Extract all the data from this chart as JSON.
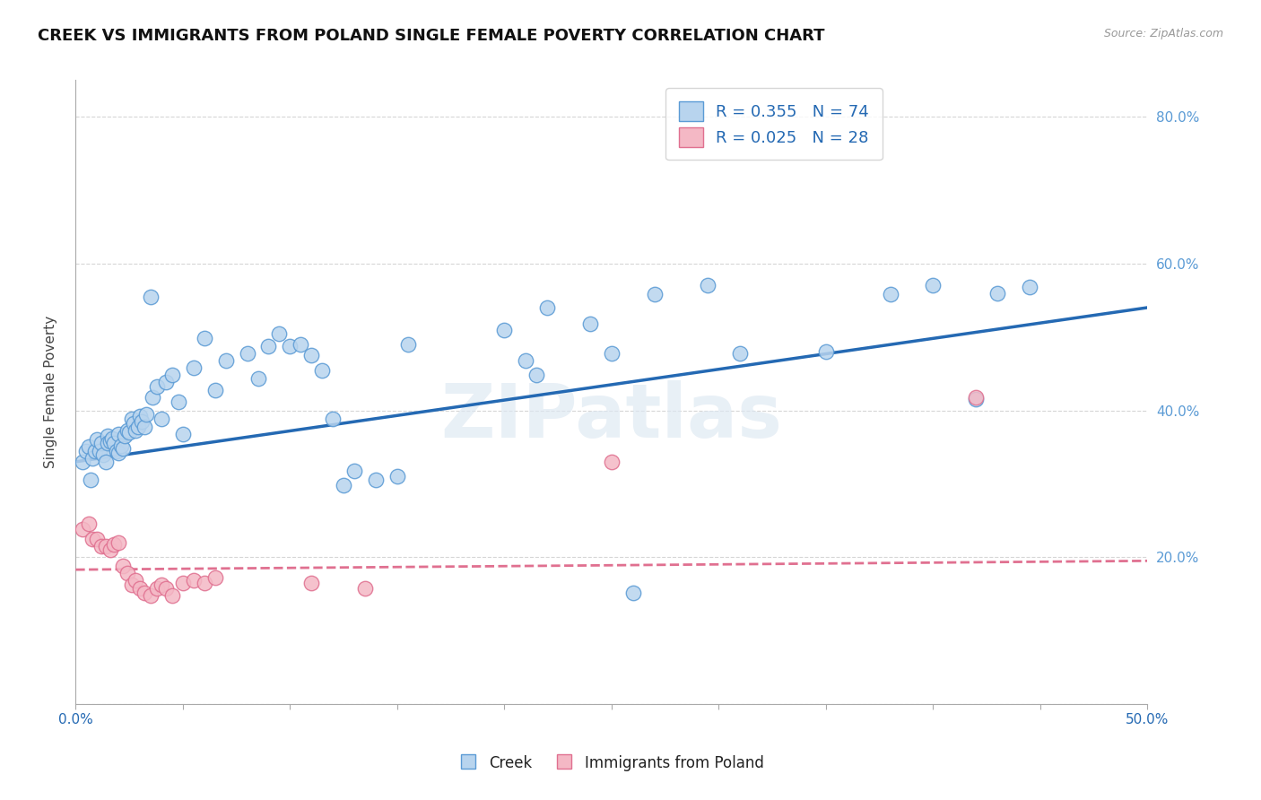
{
  "title": "CREEK VS IMMIGRANTS FROM POLAND SINGLE FEMALE POVERTY CORRELATION CHART",
  "source": "Source: ZipAtlas.com",
  "ylabel": "Single Female Poverty",
  "xlim": [
    0.0,
    0.5
  ],
  "ylim": [
    0.0,
    0.85
  ],
  "xticks": [
    0.0,
    0.05,
    0.1,
    0.15,
    0.2,
    0.25,
    0.3,
    0.35,
    0.4,
    0.45,
    0.5
  ],
  "xticklabels_show": {
    "0": "0.0%",
    "10": "50.0%"
  },
  "yticks": [
    0.0,
    0.2,
    0.4,
    0.6,
    0.8
  ],
  "yticklabels_right": [
    "",
    "20.0%",
    "40.0%",
    "60.0%",
    "80.0%"
  ],
  "creek_R": "0.355",
  "creek_N": "74",
  "poland_R": "0.025",
  "poland_N": "28",
  "creek_face_color": "#b8d4ee",
  "creek_edge_color": "#5b9bd5",
  "creek_line_color": "#2469b3",
  "poland_face_color": "#f4b8c5",
  "poland_edge_color": "#e07090",
  "poland_line_color": "#e07090",
  "legend_text_color": "#2469b3",
  "right_axis_color": "#5b9bd5",
  "watermark": "ZIPatlas",
  "creek_scatter_x": [
    0.003,
    0.005,
    0.006,
    0.007,
    0.008,
    0.009,
    0.01,
    0.011,
    0.012,
    0.013,
    0.014,
    0.015,
    0.015,
    0.016,
    0.017,
    0.018,
    0.019,
    0.02,
    0.02,
    0.021,
    0.022,
    0.023,
    0.024,
    0.025,
    0.026,
    0.027,
    0.028,
    0.029,
    0.03,
    0.031,
    0.032,
    0.033,
    0.035,
    0.036,
    0.038,
    0.04,
    0.042,
    0.045,
    0.048,
    0.05,
    0.055,
    0.06,
    0.065,
    0.07,
    0.08,
    0.085,
    0.09,
    0.095,
    0.1,
    0.105,
    0.11,
    0.115,
    0.12,
    0.125,
    0.13,
    0.14,
    0.15,
    0.155,
    0.2,
    0.21,
    0.215,
    0.22,
    0.24,
    0.25,
    0.26,
    0.27,
    0.295,
    0.31,
    0.35,
    0.38,
    0.4,
    0.42,
    0.43,
    0.445
  ],
  "creek_scatter_y": [
    0.33,
    0.345,
    0.35,
    0.305,
    0.335,
    0.345,
    0.36,
    0.345,
    0.355,
    0.34,
    0.33,
    0.365,
    0.355,
    0.358,
    0.362,
    0.355,
    0.345,
    0.342,
    0.368,
    0.352,
    0.348,
    0.365,
    0.372,
    0.37,
    0.388,
    0.382,
    0.372,
    0.378,
    0.392,
    0.385,
    0.378,
    0.395,
    0.555,
    0.418,
    0.432,
    0.388,
    0.438,
    0.448,
    0.412,
    0.368,
    0.458,
    0.498,
    0.428,
    0.468,
    0.478,
    0.443,
    0.488,
    0.505,
    0.488,
    0.49,
    0.475,
    0.455,
    0.388,
    0.298,
    0.318,
    0.305,
    0.31,
    0.49,
    0.51,
    0.468,
    0.448,
    0.54,
    0.518,
    0.478,
    0.152,
    0.558,
    0.57,
    0.478,
    0.48,
    0.558,
    0.57,
    0.415,
    0.56,
    0.568
  ],
  "poland_scatter_x": [
    0.003,
    0.006,
    0.008,
    0.01,
    0.012,
    0.014,
    0.016,
    0.018,
    0.02,
    0.022,
    0.024,
    0.026,
    0.028,
    0.03,
    0.032,
    0.035,
    0.038,
    0.04,
    0.042,
    0.045,
    0.05,
    0.055,
    0.06,
    0.065,
    0.11,
    0.135,
    0.25,
    0.42
  ],
  "poland_scatter_y": [
    0.238,
    0.245,
    0.225,
    0.225,
    0.215,
    0.215,
    0.21,
    0.218,
    0.22,
    0.188,
    0.178,
    0.162,
    0.168,
    0.158,
    0.152,
    0.148,
    0.158,
    0.162,
    0.158,
    0.148,
    0.165,
    0.168,
    0.165,
    0.172,
    0.165,
    0.158,
    0.33,
    0.418
  ],
  "creek_trend_x": [
    0.0,
    0.5
  ],
  "creek_trend_y": [
    0.33,
    0.54
  ],
  "poland_trend_x": [
    0.0,
    0.5
  ],
  "poland_trend_y": [
    0.183,
    0.195
  ],
  "grid_color": "#cccccc",
  "spine_color": "#aaaaaa"
}
